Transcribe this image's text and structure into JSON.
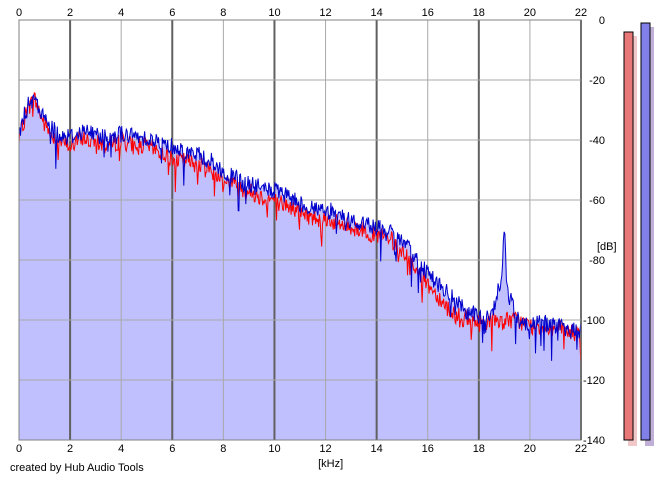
{
  "footer": {
    "credit": "created by Hub Audio Tools"
  },
  "chart_data": {
    "type": "area",
    "xlabel": "[kHz]",
    "ylabel": "[dB]",
    "xlim": [
      0,
      22
    ],
    "ylim": [
      -140,
      0
    ],
    "x_ticks": [
      "0",
      "2",
      "4",
      "6",
      "8",
      "10",
      "12",
      "14",
      "16",
      "18",
      "20",
      "22"
    ],
    "y_ticks": [
      "0",
      "-20",
      "-40",
      "-60",
      "-80",
      "-100",
      "-120",
      "-140"
    ],
    "grid": true,
    "fill_color": "#c0c0fe",
    "series": [
      {
        "channel": "left",
        "color": "#ff0000",
        "x": [
          0,
          0.3,
          0.6,
          1,
          1.5,
          2,
          2.5,
          3,
          3.5,
          4,
          4.5,
          5,
          5.5,
          6,
          6.5,
          7,
          7.5,
          8,
          8.5,
          9,
          9.5,
          10,
          10.5,
          11,
          11.5,
          12,
          12.5,
          13,
          13.5,
          14,
          14.5,
          15,
          15.5,
          16,
          16.5,
          17,
          17.5,
          18,
          18.5,
          19,
          19.5,
          20,
          20.5,
          21,
          21.5,
          22
        ],
        "values": [
          -40,
          -30,
          -26,
          -35,
          -40,
          -42,
          -39,
          -41,
          -42,
          -40,
          -42,
          -42,
          -44,
          -46,
          -47,
          -48,
          -50,
          -53,
          -55,
          -57,
          -59,
          -60,
          -62,
          -64,
          -66,
          -66,
          -68,
          -69,
          -70,
          -72,
          -73,
          -77,
          -82,
          -88,
          -93,
          -98,
          -100,
          -101,
          -100,
          -100,
          -100,
          -102,
          -102,
          -103,
          -104,
          -105
        ]
      },
      {
        "channel": "right",
        "color": "#0000cc",
        "x": [
          0,
          0.3,
          0.6,
          1,
          1.5,
          2,
          2.5,
          3,
          3.5,
          4,
          4.5,
          5,
          5.5,
          6,
          6.5,
          7,
          7.5,
          8,
          8.5,
          9,
          9.5,
          10,
          10.5,
          11,
          11.5,
          12,
          12.5,
          13,
          13.5,
          14,
          14.5,
          15,
          15.5,
          16,
          16.5,
          17,
          17.5,
          18,
          18.5,
          18.9,
          19,
          19.1,
          19.5,
          20,
          20.5,
          21,
          21.5,
          22
        ],
        "values": [
          -38,
          -29,
          -27,
          -33,
          -38,
          -39,
          -37,
          -38,
          -39,
          -38,
          -39,
          -39,
          -41,
          -42,
          -44,
          -45,
          -47,
          -51,
          -53,
          -55,
          -56,
          -57,
          -59,
          -61,
          -63,
          -63,
          -65,
          -67,
          -68,
          -69,
          -71,
          -74,
          -79,
          -84,
          -89,
          -93,
          -97,
          -99,
          -99,
          -85,
          -67,
          -90,
          -100,
          -101,
          -101,
          -102,
          -103,
          -104
        ]
      }
    ]
  },
  "level_meters": [
    {
      "channel": "left",
      "color": "#e87878",
      "shadow": "#f0c8c8",
      "value_db": -4
    },
    {
      "channel": "right",
      "color": "#8080e8",
      "shadow": "#c0b0d8",
      "value_db": -1
    }
  ]
}
